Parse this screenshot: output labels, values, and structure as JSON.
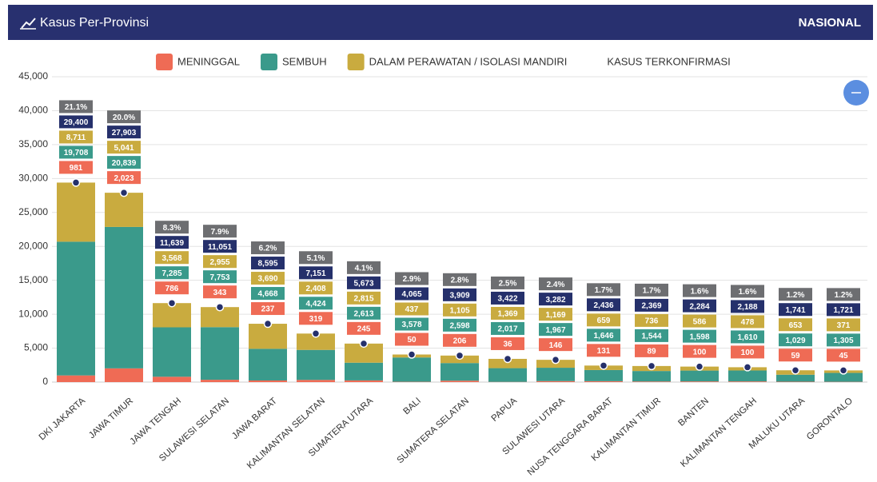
{
  "header": {
    "title": "Kasus Per-Provinsi",
    "region": "NASIONAL"
  },
  "chart_data": {
    "type": "bar",
    "stacked": true,
    "categories": [
      "DKI JAKARTA",
      "JAWA TIMUR",
      "JAWA TENGAH",
      "SULAWESI SELATAN",
      "JAWA BARAT",
      "KALIMANTAN SELATAN",
      "SUMATERA UTARA",
      "BALI",
      "SUMATERA SELATAN",
      "PAPUA",
      "SULAWESI UTARA",
      "NUSA TENGGARA BARAT",
      "KALIMANTAN TIMUR",
      "BANTEN",
      "KALIMANTAN TENGAH",
      "MALUKU UTARA",
      "GORONTALO"
    ],
    "series": [
      {
        "name": "MENINGGAL",
        "color": "#ef6b55",
        "values": [
          981,
          2023,
          786,
          343,
          237,
          319,
          245,
          50,
          206,
          36,
          146,
          131,
          89,
          100,
          100,
          59,
          45
        ],
        "value_labels": [
          "981",
          "2,023",
          "786",
          "343",
          "237",
          "319",
          "245",
          "50",
          "206",
          "36",
          "146",
          "131",
          "89",
          "100",
          "100",
          "59",
          "45"
        ]
      },
      {
        "name": "SEMBUH",
        "color": "#3a9a8b",
        "values": [
          19708,
          20839,
          7285,
          7753,
          4668,
          4424,
          2613,
          3578,
          2598,
          2017,
          1967,
          1646,
          1544,
          1598,
          1610,
          1029,
          1305
        ],
        "value_labels": [
          "19,708",
          "20,839",
          "7,285",
          "7,753",
          "4,668",
          "4,424",
          "2,613",
          "3,578",
          "2,598",
          "2,017",
          "1,967",
          "1,646",
          "1,544",
          "1,598",
          "1,610",
          "1,029",
          "1,305"
        ]
      },
      {
        "name": "DALAM PERAWATAN / ISOLASI MANDIRI",
        "color": "#c9ab3f",
        "values": [
          8711,
          5041,
          3568,
          2955,
          3690,
          2408,
          2815,
          437,
          1105,
          1369,
          1169,
          659,
          736,
          586,
          478,
          653,
          371
        ],
        "value_labels": [
          "8,711",
          "5,041",
          "3,568",
          "2,955",
          "3,690",
          "2,408",
          "2,815",
          "437",
          "1,105",
          "1,369",
          "1,169",
          "659",
          "736",
          "586",
          "478",
          "653",
          "371"
        ]
      },
      {
        "name": "KASUS TERKONFIRMASI",
        "type": "line",
        "color": "#25306b",
        "values": [
          29400,
          27903,
          11639,
          11051,
          8595,
          7151,
          5673,
          4065,
          3909,
          3422,
          3282,
          2436,
          2369,
          2284,
          2188,
          1741,
          1721
        ],
        "value_labels": [
          "29,400",
          "27,903",
          "11,639",
          "11,051",
          "8,595",
          "7,151",
          "5,673",
          "4,065",
          "3,909",
          "3,422",
          "3,282",
          "2,436",
          "2,369",
          "2,284",
          "2,188",
          "1,741",
          "1,721"
        ]
      }
    ],
    "percent_values": [
      21.1,
      20.0,
      8.3,
      7.9,
      6.2,
      5.1,
      4.1,
      2.9,
      2.8,
      2.5,
      2.4,
      1.7,
      1.7,
      1.6,
      1.6,
      1.2,
      1.2
    ],
    "percent_labels": [
      "21.1%",
      "20.0%",
      "8.3%",
      "7.9%",
      "6.2%",
      "5.1%",
      "4.1%",
      "2.9%",
      "2.8%",
      "2.5%",
      "2.4%",
      "1.7%",
      "1.7%",
      "1.6%",
      "1.6%",
      "1.2%",
      "1.2%"
    ],
    "percent_color": "#6d6e71",
    "ylim": [
      0,
      45000
    ],
    "yticks": [
      0,
      {
        "value": 5000,
        "label": "5,000"
      },
      {
        "value": 10000,
        "label": "10,000"
      },
      {
        "value": 15000,
        "label": "15,000"
      },
      {
        "value": 20000,
        "label": "20,000"
      },
      {
        "value": 25000,
        "label": "25,000"
      },
      {
        "value": 30000,
        "label": "30,000"
      },
      {
        "value": 35000,
        "label": "35,000"
      },
      {
        "value": 40000,
        "label": "40,000"
      },
      {
        "value": 45000,
        "label": "45,000"
      }
    ],
    "grid": true
  }
}
